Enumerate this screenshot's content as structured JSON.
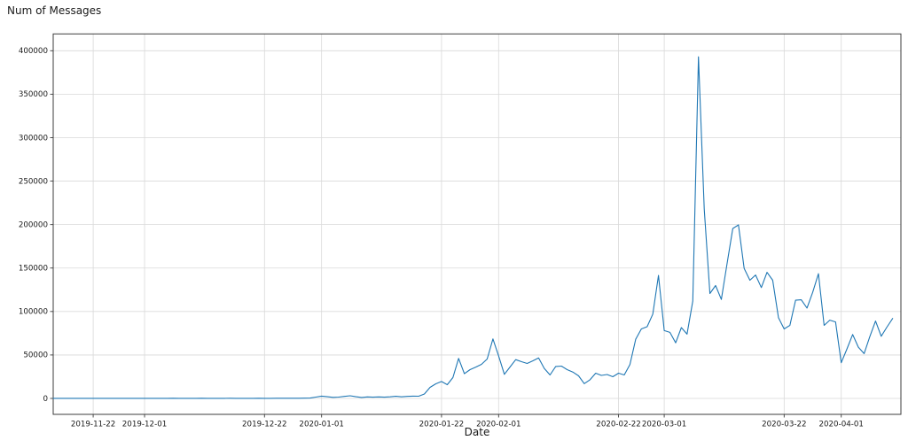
{
  "chart_data": {
    "type": "line",
    "title": "Num of Messages",
    "xlabel": "Date",
    "ylabel": "",
    "grid": true,
    "legend": "none",
    "line_color": "#1f77b4",
    "background_color": "#ffffff",
    "grid_color": "#d9d9d9",
    "axis_color": "#3c3c3c",
    "start_date": "2019-11-15",
    "frequency": "daily",
    "ylim": [
      0,
      400000
    ],
    "y_ticks": [
      {
        "value": 0,
        "label": "0"
      },
      {
        "value": 50000,
        "label": "50000"
      },
      {
        "value": 100000,
        "label": "100000"
      },
      {
        "value": 150000,
        "label": "150000"
      },
      {
        "value": 200000,
        "label": "200000"
      },
      {
        "value": 250000,
        "label": "250000"
      },
      {
        "value": 300000,
        "label": "300000"
      },
      {
        "value": 350000,
        "label": "350000"
      },
      {
        "value": 400000,
        "label": "400000"
      }
    ],
    "x_ticks": [
      {
        "day": 7,
        "label": "2019-11-22"
      },
      {
        "day": 16,
        "label": "2019-12-01"
      },
      {
        "day": 37,
        "label": "2019-12-22"
      },
      {
        "day": 47,
        "label": "2020-01-01"
      },
      {
        "day": 68,
        "label": "2020-01-22"
      },
      {
        "day": 78,
        "label": "2020-02-01"
      },
      {
        "day": 99,
        "label": "2020-02-22"
      },
      {
        "day": 107,
        "label": "2020-03-01"
      },
      {
        "day": 128,
        "label": "2020-03-22"
      },
      {
        "day": 138,
        "label": "2020-04-01"
      }
    ],
    "series": [
      {
        "name": "num_of_messages",
        "values": [
          100,
          120,
          90,
          110,
          100,
          130,
          110,
          100,
          90,
          120,
          110,
          100,
          130,
          120,
          100,
          110,
          120,
          140,
          130,
          150,
          140,
          160,
          150,
          130,
          140,
          150,
          160,
          140,
          130,
          150,
          140,
          160,
          150,
          140,
          130,
          150,
          160,
          150,
          140,
          160,
          170,
          180,
          200,
          230,
          280,
          400,
          1500,
          2600,
          1900,
          1200,
          1500,
          2300,
          3100,
          1900,
          1100,
          1700,
          1400,
          1700,
          1400,
          1800,
          2400,
          1800,
          2300,
          2600,
          2500,
          5100,
          12700,
          16800,
          19500,
          15800,
          24000,
          46000,
          28400,
          33100,
          36100,
          39200,
          45300,
          68500,
          49000,
          27700,
          36200,
          44600,
          42300,
          40200,
          43300,
          46500,
          34500,
          27000,
          36800,
          37200,
          33100,
          30400,
          26000,
          17000,
          21500,
          29000,
          26500,
          27500,
          25000,
          29000,
          27000,
          39000,
          68000,
          80000,
          82500,
          97000,
          141500,
          78000,
          76000,
          64000,
          81500,
          74000,
          112000,
          393000,
          218000,
          120700,
          129900,
          113900,
          154700,
          195500,
          199600,
          149600,
          136000,
          142000,
          127500,
          145000,
          136000,
          93000,
          80000,
          84000,
          113000,
          113500,
          104000,
          122000,
          143500,
          84000,
          90000,
          88000,
          41000,
          57000,
          73500,
          59000,
          51500,
          71000,
          89000,
          71500,
          82000,
          92000
        ]
      }
    ]
  }
}
